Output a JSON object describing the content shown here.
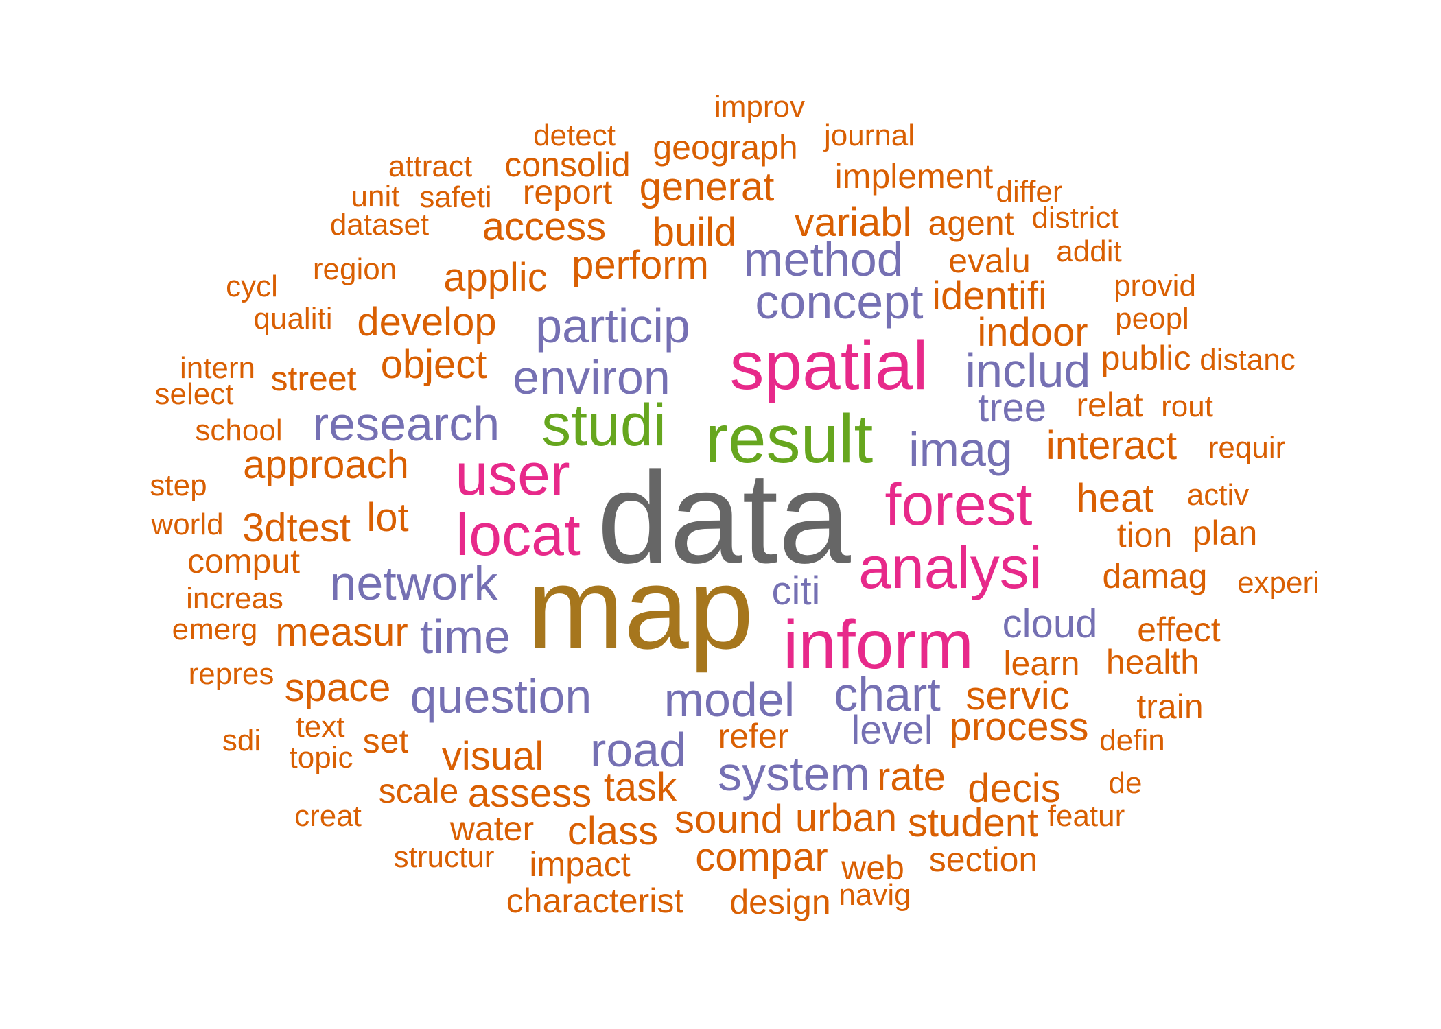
{
  "colors": {
    "orange": "#d95f02",
    "purple": "#7570b3",
    "pink": "#e7298a",
    "green": "#66a61e",
    "gold": "#a6761d",
    "gray": "#666666"
  },
  "words": [
    {
      "text": "improv",
      "color": "orange"
    },
    {
      "text": "detect",
      "color": "orange"
    },
    {
      "text": "geograph",
      "color": "orange"
    },
    {
      "text": "journal",
      "color": "orange"
    },
    {
      "text": "attract",
      "color": "orange"
    },
    {
      "text": "consolid",
      "color": "orange"
    },
    {
      "text": "implement",
      "color": "orange"
    },
    {
      "text": "unit",
      "color": "orange"
    },
    {
      "text": "safeti",
      "color": "orange"
    },
    {
      "text": "report",
      "color": "orange"
    },
    {
      "text": "generat",
      "color": "orange"
    },
    {
      "text": "differ",
      "color": "orange"
    },
    {
      "text": "dataset",
      "color": "orange"
    },
    {
      "text": "access",
      "color": "orange"
    },
    {
      "text": "build",
      "color": "orange"
    },
    {
      "text": "variabl",
      "color": "orange"
    },
    {
      "text": "agent",
      "color": "orange"
    },
    {
      "text": "district",
      "color": "orange"
    },
    {
      "text": "region",
      "color": "orange"
    },
    {
      "text": "applic",
      "color": "orange"
    },
    {
      "text": "perform",
      "color": "orange"
    },
    {
      "text": "method",
      "color": "purple"
    },
    {
      "text": "evalu",
      "color": "orange"
    },
    {
      "text": "addit",
      "color": "orange"
    },
    {
      "text": "cycl",
      "color": "orange"
    },
    {
      "text": "concept",
      "color": "purple"
    },
    {
      "text": "identifi",
      "color": "orange"
    },
    {
      "text": "provid",
      "color": "orange"
    },
    {
      "text": "qualiti",
      "color": "orange"
    },
    {
      "text": "develop",
      "color": "orange"
    },
    {
      "text": "particip",
      "color": "purple"
    },
    {
      "text": "indoor",
      "color": "orange"
    },
    {
      "text": "peopl",
      "color": "orange"
    },
    {
      "text": "spatial",
      "color": "pink"
    },
    {
      "text": "intern",
      "color": "orange"
    },
    {
      "text": "object",
      "color": "orange"
    },
    {
      "text": "street",
      "color": "orange"
    },
    {
      "text": "environ",
      "color": "purple"
    },
    {
      "text": "includ",
      "color": "purple"
    },
    {
      "text": "public",
      "color": "orange"
    },
    {
      "text": "distanc",
      "color": "orange"
    },
    {
      "text": "select",
      "color": "orange"
    },
    {
      "text": "tree",
      "color": "purple"
    },
    {
      "text": "relat",
      "color": "orange"
    },
    {
      "text": "rout",
      "color": "orange"
    },
    {
      "text": "school",
      "color": "orange"
    },
    {
      "text": "research",
      "color": "purple"
    },
    {
      "text": "studi",
      "color": "green"
    },
    {
      "text": "result",
      "color": "green"
    },
    {
      "text": "imag",
      "color": "purple"
    },
    {
      "text": "interact",
      "color": "orange"
    },
    {
      "text": "requir",
      "color": "orange"
    },
    {
      "text": "approach",
      "color": "orange"
    },
    {
      "text": "user",
      "color": "pink"
    },
    {
      "text": "step",
      "color": "orange"
    },
    {
      "text": "forest",
      "color": "pink"
    },
    {
      "text": "heat",
      "color": "orange"
    },
    {
      "text": "activ",
      "color": "orange"
    },
    {
      "text": "data",
      "color": "gray"
    },
    {
      "text": "lot",
      "color": "orange"
    },
    {
      "text": "world",
      "color": "orange"
    },
    {
      "text": "3dtest",
      "color": "orange"
    },
    {
      "text": "locat",
      "color": "pink"
    },
    {
      "text": "tion",
      "color": "orange"
    },
    {
      "text": "plan",
      "color": "orange"
    },
    {
      "text": "comput",
      "color": "orange"
    },
    {
      "text": "analysi",
      "color": "pink"
    },
    {
      "text": "damag",
      "color": "orange"
    },
    {
      "text": "experi",
      "color": "orange"
    },
    {
      "text": "network",
      "color": "purple"
    },
    {
      "text": "citi",
      "color": "purple"
    },
    {
      "text": "increas",
      "color": "orange"
    },
    {
      "text": "map",
      "color": "gold"
    },
    {
      "text": "cloud",
      "color": "purple"
    },
    {
      "text": "effect",
      "color": "orange"
    },
    {
      "text": "emerg",
      "color": "orange"
    },
    {
      "text": "measur",
      "color": "orange"
    },
    {
      "text": "time",
      "color": "purple"
    },
    {
      "text": "inform",
      "color": "pink"
    },
    {
      "text": "learn",
      "color": "orange"
    },
    {
      "text": "health",
      "color": "orange"
    },
    {
      "text": "repres",
      "color": "orange"
    },
    {
      "text": "space",
      "color": "orange"
    },
    {
      "text": "question",
      "color": "purple"
    },
    {
      "text": "model",
      "color": "purple"
    },
    {
      "text": "chart",
      "color": "purple"
    },
    {
      "text": "servic",
      "color": "orange"
    },
    {
      "text": "train",
      "color": "orange"
    },
    {
      "text": "text",
      "color": "orange"
    },
    {
      "text": "level",
      "color": "purple"
    },
    {
      "text": "process",
      "color": "orange"
    },
    {
      "text": "sdi",
      "color": "orange"
    },
    {
      "text": "set",
      "color": "orange"
    },
    {
      "text": "refer",
      "color": "orange"
    },
    {
      "text": "defin",
      "color": "orange"
    },
    {
      "text": "topic",
      "color": "orange"
    },
    {
      "text": "visual",
      "color": "orange"
    },
    {
      "text": "road",
      "color": "purple"
    },
    {
      "text": "system",
      "color": "purple"
    },
    {
      "text": "rate",
      "color": "orange"
    },
    {
      "text": "scale",
      "color": "orange"
    },
    {
      "text": "assess",
      "color": "orange"
    },
    {
      "text": "task",
      "color": "orange"
    },
    {
      "text": "decis",
      "color": "orange"
    },
    {
      "text": "de",
      "color": "orange"
    },
    {
      "text": "creat",
      "color": "orange"
    },
    {
      "text": "sound",
      "color": "orange"
    },
    {
      "text": "urban",
      "color": "orange"
    },
    {
      "text": "student",
      "color": "orange"
    },
    {
      "text": "featur",
      "color": "orange"
    },
    {
      "text": "water",
      "color": "orange"
    },
    {
      "text": "class",
      "color": "orange"
    },
    {
      "text": "structur",
      "color": "orange"
    },
    {
      "text": "impact",
      "color": "orange"
    },
    {
      "text": "compar",
      "color": "orange"
    },
    {
      "text": "web",
      "color": "orange"
    },
    {
      "text": "section",
      "color": "orange"
    },
    {
      "text": "characterist",
      "color": "orange"
    },
    {
      "text": "design",
      "color": "orange"
    },
    {
      "text": "navig",
      "color": "orange"
    }
  ]
}
